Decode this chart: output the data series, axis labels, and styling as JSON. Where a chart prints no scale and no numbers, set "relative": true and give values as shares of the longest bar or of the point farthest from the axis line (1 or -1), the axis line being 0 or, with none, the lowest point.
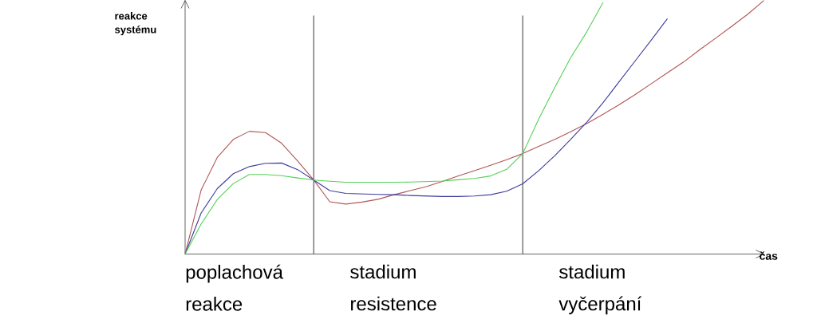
{
  "chart_data": {
    "type": "line",
    "relative": true,
    "xlabel": "čas",
    "ylabel": "reakce systému",
    "marker": "none",
    "categories": [
      null,
      null,
      null,
      null,
      null,
      null,
      null,
      null,
      null,
      null,
      null,
      null,
      null,
      null,
      null,
      null,
      null,
      null,
      null,
      null,
      null,
      null,
      null,
      null,
      null,
      null,
      null,
      null,
      null,
      null,
      null,
      null,
      null,
      null,
      null,
      null,
      null
    ],
    "series": [
      {
        "color": "#b05555",
        "values": [
          0,
          0.253,
          0.381,
          0.452,
          0.484,
          0.479,
          0.437,
          0.367,
          0.292,
          0.206,
          0.197,
          0.205,
          0.216,
          0.234,
          0.25,
          0.266,
          0.286,
          0.308,
          0.329,
          0.35,
          0.372,
          0.396,
          0.425,
          0.452,
          0.483,
          0.515,
          0.551,
          0.589,
          0.629,
          0.672,
          0.715,
          0.757,
          0.805,
          0.851,
          0.898,
          0.946,
          1
        ]
      },
      {
        "color": "#3c3c9c",
        "values": [
          0,
          0.162,
          0.258,
          0.317,
          0.345,
          0.358,
          0.359,
          0.333,
          0.292,
          0.25,
          0.239,
          0.237,
          0.235,
          0.234,
          0.231,
          0.229,
          0.227,
          0.227,
          0.229,
          0.234,
          0.248,
          0.277,
          0.329,
          0.388,
          0.453,
          0.521,
          0.597,
          0.68,
          0.762,
          0.844,
          0.928,
          null,
          null,
          null,
          null,
          null,
          null
        ]
      },
      {
        "color": "#55d055",
        "values": [
          0,
          0.119,
          0.215,
          0.278,
          0.314,
          0.314,
          0.309,
          0.3,
          0.292,
          0.287,
          0.283,
          0.283,
          0.283,
          0.283,
          0.284,
          0.286,
          0.288,
          0.293,
          0.298,
          0.308,
          0.334,
          0.396,
          0.533,
          0.657,
          0.776,
          0.878,
          0.992,
          null,
          null,
          null,
          null,
          null,
          null,
          null,
          null,
          null,
          null
        ]
      }
    ],
    "annotations": [
      "poplachová reakce",
      "stadium resistence",
      "stadium vyčerpání"
    ]
  }
}
